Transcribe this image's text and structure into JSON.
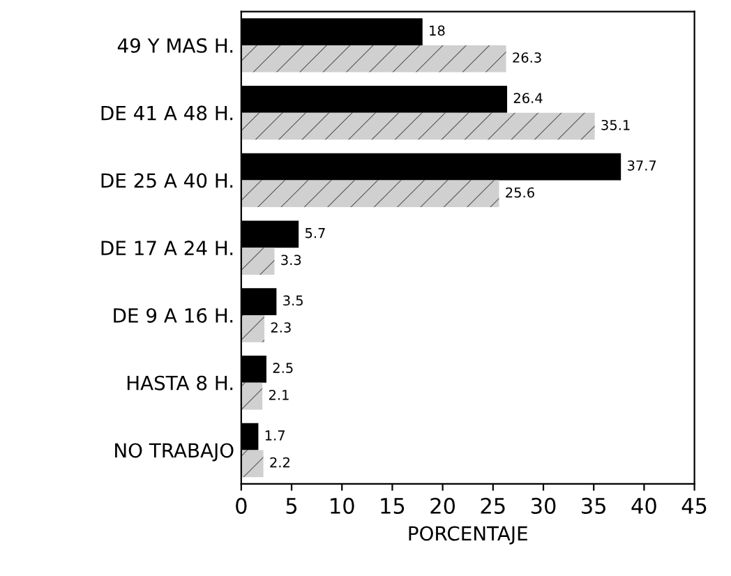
{
  "chart_data": {
    "type": "bar",
    "orientation": "horizontal",
    "xlabel": "PORCENTAJE",
    "categories": [
      "49 Y MAS H.",
      "DE 41 A 48 H.",
      "DE 25 A 40 H.",
      "DE 17 A 24 H.",
      "DE 9 A 16 H.",
      "HASTA 8 H.",
      "NO TRABAJO"
    ],
    "series": [
      {
        "color": "#000000",
        "values": [
          18,
          26.4,
          37.7,
          5.7,
          3.5,
          2.5,
          1.7
        ]
      },
      {
        "color": "#d0d0d0",
        "values": [
          26.3,
          35.1,
          25.6,
          3.3,
          2.3,
          2.1,
          2.2
        ]
      }
    ],
    "xlim": [
      0,
      45
    ],
    "xticks": [
      0,
      5,
      10,
      15,
      20,
      25,
      30,
      35,
      40,
      45
    ],
    "data_labels": true,
    "grid": false,
    "legend": false
  }
}
